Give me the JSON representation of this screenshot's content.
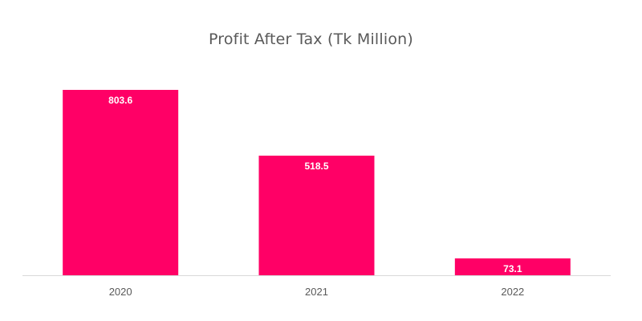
{
  "chart_data": {
    "type": "bar",
    "title": "Profit After Tax (Tk Million)",
    "categories": [
      "2020",
      "2021",
      "2022"
    ],
    "values": [
      803.6,
      518.5,
      73.1
    ],
    "value_labels": [
      "803.6",
      "518.5",
      "73.1"
    ],
    "ylim": [
      0,
      803.6
    ],
    "grid": false,
    "legend": "none",
    "bar_color": "#FF0066",
    "axis_color": "#D9D9D9",
    "text_color": "#595959"
  }
}
